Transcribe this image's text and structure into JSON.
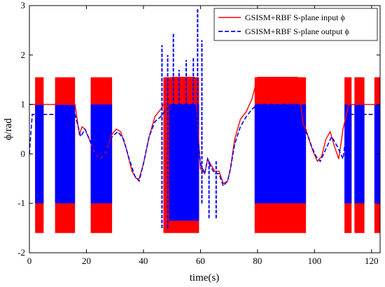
{
  "chart_data": {
    "type": "line",
    "xlabel": "time(s)",
    "ylabel": "ϕ/rad",
    "xlim": [
      0,
      123
    ],
    "ylim": [
      -2,
      3
    ],
    "xticks": [
      "0",
      "20",
      "40",
      "60",
      "80",
      "100",
      "120"
    ],
    "xtick_values": [
      0,
      20,
      40,
      60,
      80,
      100,
      120
    ],
    "yticks": [
      "-2",
      "-1",
      "0",
      "1",
      "2",
      "3"
    ],
    "ytick_values": [
      -2,
      -1,
      0,
      1,
      2,
      3
    ],
    "legend_position": "top-right",
    "grid": false,
    "series": [
      {
        "name": "GSISM+RBF S-plane input ϕ",
        "color": "#ff0000",
        "style": "solid",
        "x": [
          0,
          0.8,
          1.5,
          3,
          5,
          7,
          9,
          13,
          16,
          17.5,
          18.5,
          19.5,
          21,
          23,
          25,
          27,
          29,
          30.5,
          32,
          34,
          36,
          37.5,
          38.5,
          40,
          42,
          44,
          46,
          48,
          50,
          52,
          54,
          56,
          58,
          60,
          61.5,
          62.5,
          63.5,
          65,
          66.5,
          68,
          69.5,
          70.5,
          72,
          74,
          76,
          78,
          80,
          84,
          88,
          92,
          94,
          96,
          97,
          98,
          99.5,
          101,
          102.5,
          104,
          105.5,
          107,
          108.5,
          110,
          112,
          114,
          116,
          118,
          120,
          123
        ],
        "y": [
          1.0,
          1.0,
          1.0,
          1.0,
          1.0,
          1.0,
          1.0,
          1.0,
          1.0,
          0.4,
          0.55,
          0.5,
          0.3,
          0.0,
          -0.1,
          0.05,
          0.4,
          0.5,
          0.45,
          0.1,
          -0.35,
          -0.5,
          -0.5,
          -0.2,
          0.35,
          0.75,
          0.9,
          1.1,
          1.55,
          1.55,
          1.55,
          1.55,
          1.55,
          -0.3,
          -0.4,
          -0.1,
          -0.2,
          -0.35,
          -0.35,
          -0.6,
          -0.55,
          -0.3,
          0.3,
          0.7,
          0.85,
          1.1,
          1.55,
          1.55,
          1.55,
          1.55,
          1.55,
          0.6,
          0.5,
          0.3,
          0.05,
          -0.15,
          -0.05,
          0.3,
          0.45,
          0.15,
          -0.1,
          0.5,
          1.0,
          1.0,
          1.0,
          1.0,
          1.0,
          1.0
        ]
      },
      {
        "name": "GSISM+RBF S-plane output ϕ",
        "color": "#0000ff",
        "style": "dashed",
        "x": [
          0,
          0.5,
          1,
          2,
          3,
          4,
          6,
          8,
          10,
          13,
          16,
          18,
          19.5,
          21,
          23,
          25,
          27,
          29,
          31,
          33,
          35,
          37,
          38.5,
          40,
          42,
          44,
          46,
          48,
          50,
          52,
          54,
          56,
          58,
          60,
          61.5,
          62.5,
          63.5,
          65,
          66.5,
          68,
          69.5,
          70.5,
          72,
          74,
          76,
          78,
          80,
          84,
          88,
          92,
          94,
          96,
          97.5,
          99,
          100.5,
          102,
          104,
          106,
          108,
          110,
          112,
          114,
          116,
          118,
          120,
          123
        ],
        "y": [
          0.0,
          0.4,
          0.8,
          0.8,
          0.8,
          0.8,
          0.8,
          0.8,
          0.8,
          0.8,
          0.8,
          0.35,
          0.5,
          0.3,
          0.0,
          -0.1,
          0.05,
          0.35,
          0.45,
          0.3,
          -0.1,
          -0.45,
          -0.55,
          -0.2,
          0.35,
          0.65,
          0.75,
          0.9,
          1.0,
          1.0,
          1.0,
          1.0,
          1.0,
          -0.2,
          -0.4,
          -0.1,
          -0.25,
          -0.4,
          -0.4,
          -0.65,
          -0.55,
          -0.3,
          0.2,
          0.55,
          0.75,
          0.9,
          1.0,
          1.0,
          1.0,
          1.0,
          1.0,
          0.5,
          0.4,
          0.15,
          -0.05,
          -0.15,
          0.1,
          0.35,
          0.15,
          -0.1,
          0.8,
          0.8,
          0.8,
          0.8,
          0.8,
          0.8
        ]
      }
    ],
    "oscillation_bands": [
      {
        "series": 0,
        "x": [
          2,
          5
        ],
        "y": [
          -1.6,
          1.55
        ]
      },
      {
        "series": 0,
        "x": [
          9,
          16
        ],
        "y": [
          -1.6,
          1.55
        ]
      },
      {
        "series": 0,
        "x": [
          21.5,
          29
        ],
        "y": [
          -1.6,
          1.55
        ]
      },
      {
        "series": 0,
        "x": [
          47,
          59.5
        ],
        "y": [
          -1.6,
          1.55
        ]
      },
      {
        "series": 0,
        "x": [
          79,
          97
        ],
        "y": [
          -1.6,
          1.55
        ]
      },
      {
        "series": 0,
        "x": [
          110.5,
          113
        ],
        "y": [
          -1.6,
          1.55
        ]
      },
      {
        "series": 0,
        "x": [
          114,
          117.5
        ],
        "y": [
          -1.6,
          1.55
        ]
      },
      {
        "series": 0,
        "x": [
          121,
          123
        ],
        "y": [
          -1.6,
          1.55
        ]
      },
      {
        "series": 1,
        "x": [
          2,
          5
        ],
        "y": [
          -1.0,
          1.0
        ]
      },
      {
        "series": 1,
        "x": [
          9,
          16
        ],
        "y": [
          -1.0,
          1.0
        ]
      },
      {
        "series": 1,
        "x": [
          21.5,
          29
        ],
        "y": [
          -1.0,
          1.0
        ]
      },
      {
        "series": 1,
        "x": [
          49,
          59.5
        ],
        "y": [
          -1.35,
          1.0
        ]
      },
      {
        "series": 1,
        "x": [
          79,
          97
        ],
        "y": [
          -1.0,
          1.0
        ]
      },
      {
        "series": 1,
        "x": [
          110.5,
          113
        ],
        "y": [
          -1.0,
          1.0
        ]
      },
      {
        "series": 1,
        "x": [
          114,
          117.5
        ],
        "y": [
          -1.0,
          1.0
        ]
      },
      {
        "series": 1,
        "x": [
          121,
          123
        ],
        "y": [
          -1.0,
          1.0
        ]
      }
    ],
    "spikes": [
      {
        "series": 1,
        "x": 46.5,
        "y": [
          -1.5,
          2.2
        ]
      },
      {
        "series": 1,
        "x": 48.5,
        "y": [
          -1.5,
          2.0
        ]
      },
      {
        "series": 1,
        "x": 50.5,
        "y": [
          -1.3,
          2.45
        ]
      },
      {
        "series": 1,
        "x": 52.5,
        "y": [
          -1.3,
          1.7
        ]
      },
      {
        "series": 1,
        "x": 55,
        "y": [
          -1.2,
          1.9
        ]
      },
      {
        "series": 1,
        "x": 57.5,
        "y": [
          -1.2,
          1.95
        ]
      },
      {
        "series": 1,
        "x": 59,
        "y": [
          -1.0,
          2.95
        ]
      },
      {
        "series": 1,
        "x": 60.5,
        "y": [
          -1.0,
          2.3
        ]
      },
      {
        "series": 1,
        "x": 63,
        "y": [
          -1.3,
          -0.15
        ]
      },
      {
        "series": 1,
        "x": 65.5,
        "y": [
          -1.3,
          -0.15
        ]
      }
    ]
  }
}
